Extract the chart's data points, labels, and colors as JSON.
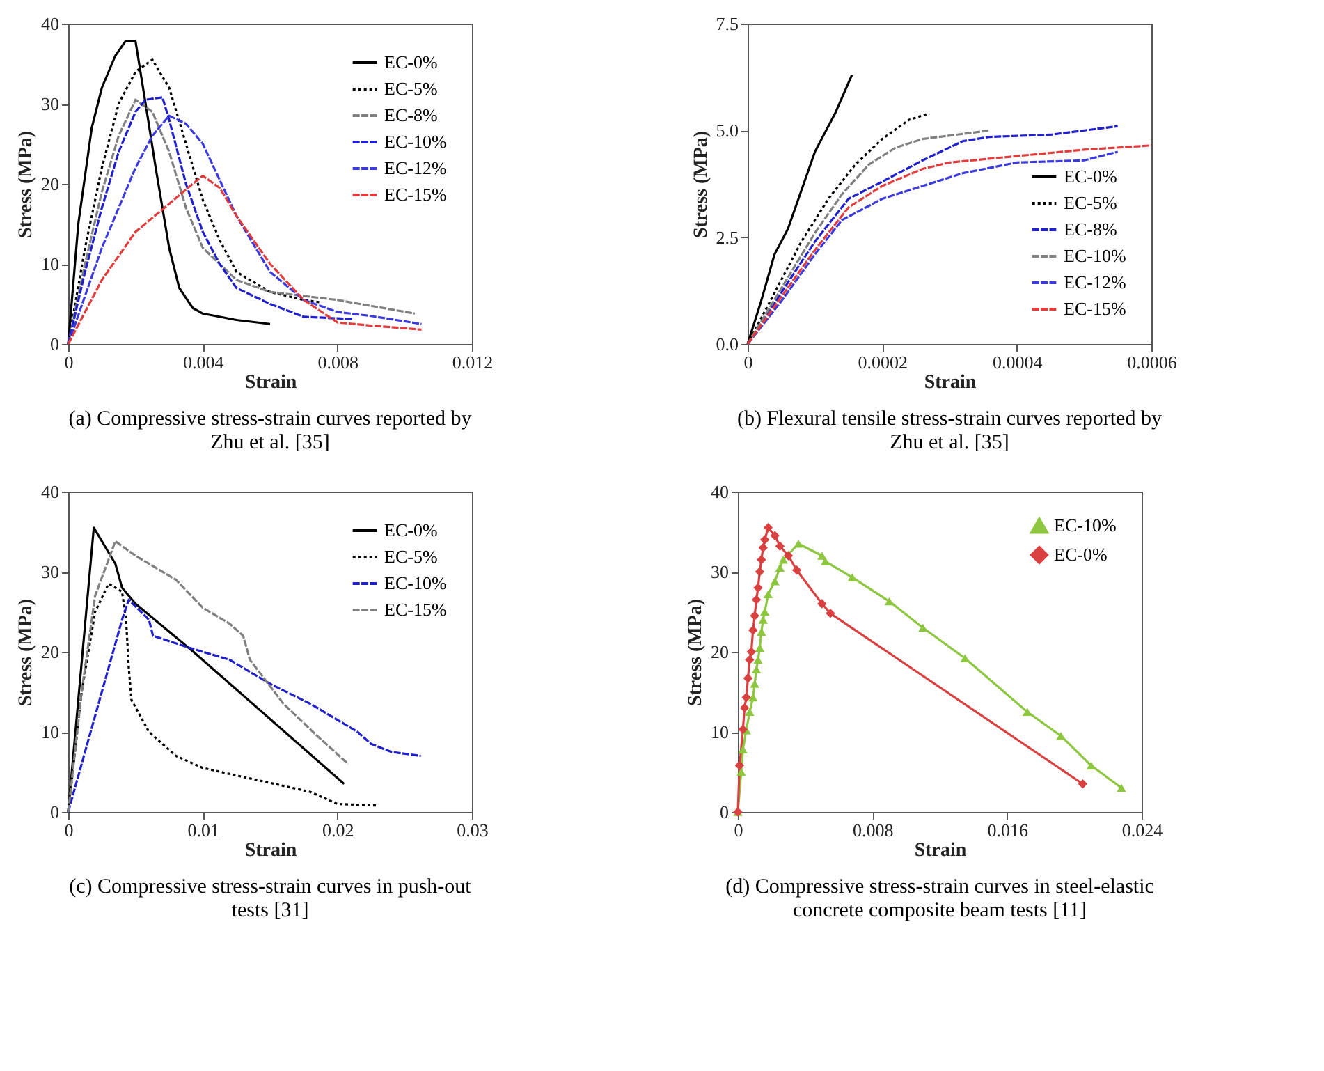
{
  "chart_data": [
    {
      "type": "line",
      "title": "(a) Compressive stress-strain curves reported by\nZhu et al. [35]",
      "xlabel": "Strain",
      "ylabel": "Stress (MPa)",
      "xlim": [
        0,
        0.012
      ],
      "xticks": [
        0,
        0.004,
        0.008,
        0.012
      ],
      "ylim": [
        0,
        40
      ],
      "yticks": [
        0,
        10,
        20,
        30,
        40
      ],
      "grid": false,
      "legend": "top right",
      "marker": "none",
      "series": [
        {
          "name": "EC-0%",
          "color": "#000000",
          "line_style": "solid",
          "x": [
            0,
            0.0003,
            0.0007,
            0.001,
            0.0014,
            0.0017,
            0.002,
            0.0023,
            0.0026,
            0.003,
            0.0033,
            0.0037,
            0.004,
            0.005,
            0.006
          ],
          "values": [
            0,
            15,
            27,
            32,
            36,
            37.8,
            37.8,
            30,
            22,
            12,
            7,
            4.5,
            3.8,
            3,
            2.5
          ]
        },
        {
          "name": "EC-5%",
          "color": "#000000",
          "line_style": "dotted",
          "x": [
            0,
            0.0005,
            0.001,
            0.0015,
            0.002,
            0.0025,
            0.003,
            0.0035,
            0.004,
            0.0045,
            0.005,
            0.006,
            0.007,
            0.0075
          ],
          "values": [
            0,
            12,
            22,
            30,
            34,
            35.5,
            32,
            25,
            18,
            13,
            9,
            6.5,
            5.5,
            5.2
          ]
        },
        {
          "name": "EC-8%",
          "color": "#808080",
          "line_style": "dashed",
          "x": [
            0,
            0.0005,
            0.001,
            0.0015,
            0.002,
            0.0025,
            0.003,
            0.0035,
            0.004,
            0.005,
            0.006,
            0.008,
            0.0103
          ],
          "values": [
            0,
            10,
            19,
            26,
            30.5,
            29,
            24,
            17,
            12,
            8,
            6.5,
            5.5,
            3.8
          ]
        },
        {
          "name": "EC-10%",
          "color": "#1f1fcc",
          "line_style": "dashed",
          "x": [
            0,
            0.0005,
            0.001,
            0.0015,
            0.002,
            0.0023,
            0.0028,
            0.003,
            0.0035,
            0.004,
            0.0045,
            0.005,
            0.006,
            0.007,
            0.008,
            0.0085
          ],
          "values": [
            0,
            9,
            17,
            24,
            29,
            30.5,
            30.8,
            28,
            20,
            14,
            10,
            7,
            5,
            3.4,
            3.2,
            3.1
          ]
        },
        {
          "name": "EC-12%",
          "color": "#3b3bdd",
          "line_style": "dashed",
          "x": [
            0,
            0.001,
            0.002,
            0.0025,
            0.003,
            0.0035,
            0.004,
            0.005,
            0.006,
            0.007,
            0.008,
            0.009,
            0.0105
          ],
          "values": [
            0,
            12,
            22,
            26,
            28.5,
            27.5,
            25,
            16,
            9,
            5.5,
            4,
            3.5,
            2.5
          ]
        },
        {
          "name": "EC-15%",
          "color": "#e03c3c",
          "line_style": "dashed",
          "x": [
            0,
            0.001,
            0.002,
            0.003,
            0.0037,
            0.004,
            0.0045,
            0.005,
            0.006,
            0.007,
            0.008,
            0.009,
            0.0105
          ],
          "values": [
            0,
            8,
            14,
            17.5,
            20,
            21,
            19.5,
            16,
            10,
            5.5,
            2.7,
            2.3,
            1.8
          ]
        }
      ]
    },
    {
      "type": "line",
      "title": "(b) Flexural tensile stress-strain curves reported by\nZhu et al. [35]",
      "xlabel": "Strain",
      "ylabel": "Stress (MPa)",
      "xlim": [
        0,
        0.0006
      ],
      "xticks": [
        0,
        0.0002,
        0.0004,
        0.0006
      ],
      "ylim": [
        0,
        7.5
      ],
      "yticks": [
        {
          "value": 0,
          "label": "0.0"
        },
        2.5,
        {
          "value": 5,
          "label": "5.0"
        },
        7.5
      ],
      "grid": false,
      "legend": "bottom right",
      "marker": "none",
      "series": [
        {
          "name": "EC-0%",
          "color": "#000000",
          "line_style": "solid",
          "x": [
            0,
            2e-05,
            4e-05,
            6e-05,
            8e-05,
            0.0001,
            0.00011,
            0.00013,
            0.000155
          ],
          "values": [
            0,
            1,
            2.1,
            2.7,
            3.6,
            4.5,
            4.8,
            5.4,
            6.3
          ]
        },
        {
          "name": "EC-5%",
          "color": "#000000",
          "line_style": "dotted",
          "x": [
            0,
            4e-05,
            8e-05,
            0.00012,
            0.00016,
            0.0002,
            0.00024,
            0.00027
          ],
          "values": [
            0,
            1.2,
            2.4,
            3.4,
            4.2,
            4.8,
            5.25,
            5.4
          ]
        },
        {
          "name": "EC-8%",
          "color": "#1f1fcc",
          "line_style": "dashed",
          "x": [
            0,
            5e-05,
            0.0001,
            0.00015,
            0.0002,
            0.00026,
            0.00032,
            0.00036,
            0.00045,
            0.00055
          ],
          "values": [
            0,
            1.2,
            2.4,
            3.4,
            3.8,
            4.3,
            4.75,
            4.85,
            4.9,
            5.1
          ]
        },
        {
          "name": "EC-10%",
          "color": "#808080",
          "line_style": "dashed",
          "x": [
            0,
            5e-05,
            0.0001,
            0.00014,
            0.00018,
            0.00022,
            0.00026,
            0.00036
          ],
          "values": [
            0,
            1.3,
            2.6,
            3.5,
            4.2,
            4.6,
            4.8,
            5.0
          ]
        },
        {
          "name": "EC-12%",
          "color": "#3b3bdd",
          "line_style": "dashed",
          "x": [
            0,
            5e-05,
            0.0001,
            0.00014,
            0.0002,
            0.00026,
            0.00032,
            0.0004,
            0.0005,
            0.00055
          ],
          "values": [
            0,
            1,
            2.1,
            2.9,
            3.4,
            3.7,
            4.0,
            4.25,
            4.3,
            4.5
          ]
        },
        {
          "name": "EC-15%",
          "color": "#e03c3c",
          "line_style": "dashed",
          "x": [
            0,
            5e-05,
            0.0001,
            0.00015,
            0.0002,
            0.00026,
            0.0003,
            0.0004,
            0.0005,
            0.0006
          ],
          "values": [
            0,
            1.1,
            2.2,
            3.2,
            3.7,
            4.1,
            4.25,
            4.4,
            4.55,
            4.65
          ]
        }
      ]
    },
    {
      "type": "line",
      "title": "(c) Compressive stress-strain curves in push-out\ntests [31]",
      "xlabel": "Strain",
      "ylabel": "Stress (MPa)",
      "xlim": [
        0,
        0.03
      ],
      "xticks": [
        0,
        0.01,
        0.02,
        0.03
      ],
      "ylim": [
        0,
        40
      ],
      "yticks": [
        0,
        10,
        20,
        30,
        40
      ],
      "grid": false,
      "legend": "top right",
      "marker": "none",
      "series": [
        {
          "name": "EC-0%",
          "color": "#000000",
          "line_style": "solid",
          "x": [
            0,
            0.0019,
            0.0035,
            0.004,
            0.005,
            0.0093,
            0.0205
          ],
          "values": [
            0,
            35.5,
            31,
            28,
            26,
            20,
            3.5
          ]
        },
        {
          "name": "EC-5%",
          "color": "#000000",
          "line_style": "dotted",
          "x": [
            0,
            0.001,
            0.002,
            0.003,
            0.004,
            0.0043,
            0.0045,
            0.0047,
            0.006,
            0.008,
            0.01,
            0.014,
            0.018,
            0.02,
            0.023
          ],
          "values": [
            0,
            15,
            25,
            28.5,
            27.5,
            24,
            18,
            14,
            10,
            7,
            5.5,
            4,
            2.5,
            1,
            0.8
          ]
        },
        {
          "name": "EC-10%",
          "color": "#1f1fcc",
          "line_style": "dashed",
          "x": [
            0,
            0.001,
            0.002,
            0.003,
            0.004,
            0.0045,
            0.006,
            0.0063,
            0.009,
            0.012,
            0.015,
            0.018,
            0.02,
            0.0215,
            0.0225,
            0.024,
            0.0262
          ],
          "values": [
            0,
            6,
            12,
            18,
            24,
            26.5,
            24,
            22,
            20.5,
            19,
            16,
            13.5,
            11.5,
            10,
            8.5,
            7.5,
            7
          ]
        },
        {
          "name": "EC-15%",
          "color": "#808080",
          "line_style": "dashed",
          "x": [
            0,
            0.001,
            0.002,
            0.0035,
            0.005,
            0.008,
            0.01,
            0.012,
            0.013,
            0.0135,
            0.016,
            0.0185,
            0.0208
          ],
          "values": [
            0,
            15,
            27,
            33.8,
            32,
            29,
            25.5,
            23.5,
            22,
            19,
            13.5,
            9.5,
            6
          ]
        }
      ]
    },
    {
      "type": "line",
      "title": "(d) Compressive stress-strain curves in steel-elastic\nconcrete composite beam tests [11]",
      "xlabel": "Strain",
      "ylabel": "Stress (MPa)",
      "xlim": [
        0,
        0.024
      ],
      "xticks": [
        0,
        0.008,
        0.016,
        0.024
      ],
      "ylim": [
        0,
        40
      ],
      "yticks": [
        0,
        10,
        20,
        30,
        40
      ],
      "grid": false,
      "legend": "top right",
      "series": [
        {
          "name": "EC-10%",
          "color": "#8dc63f",
          "marker": "triangle",
          "line_style": "solid",
          "x": [
            0,
            0.0002,
            0.0003,
            0.0005,
            0.0007,
            0.0009,
            0.001,
            0.0011,
            0.0012,
            0.0013,
            0.0014,
            0.0015,
            0.0016,
            0.0018,
            0.0022,
            0.0025,
            0.0027,
            0.0036,
            0.005,
            0.0052,
            0.0068,
            0.009,
            0.011,
            0.0135,
            0.0172,
            0.0192,
            0.021,
            0.0228
          ],
          "values": [
            0,
            5,
            7.8,
            10.2,
            12.5,
            14.3,
            16,
            17.8,
            19,
            20.5,
            22.5,
            24,
            25,
            27.2,
            28.8,
            30.5,
            31.5,
            33.5,
            32,
            31.3,
            29.3,
            26.3,
            23,
            19.2,
            12.5,
            9.5,
            5.8,
            3
          ]
        },
        {
          "name": "EC-0%",
          "color": "#d94040",
          "marker": "diamond",
          "line_style": "solid",
          "x": [
            0,
            0.0001,
            0.0003,
            0.0004,
            0.0005,
            0.0006,
            0.0007,
            0.0008,
            0.0009,
            0.001,
            0.0011,
            0.0012,
            0.0013,
            0.0014,
            0.0015,
            0.0016,
            0.0018,
            0.0022,
            0.0025,
            0.003,
            0.0035,
            0.005,
            0.0055,
            0.0205
          ],
          "values": [
            0,
            5.8,
            10.3,
            13,
            14.3,
            16.7,
            19,
            20,
            22.7,
            24.5,
            26.5,
            28,
            30,
            31.5,
            33,
            34,
            35.5,
            34.5,
            33.2,
            32,
            30.2,
            26,
            24.8,
            3.5
          ]
        }
      ]
    }
  ]
}
